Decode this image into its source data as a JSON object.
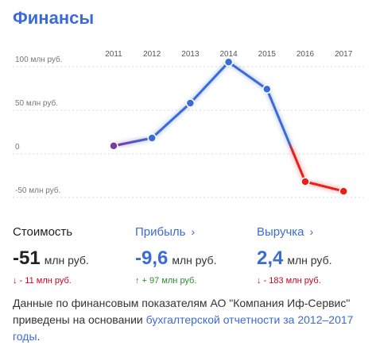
{
  "title": "Финансы",
  "colors": {
    "up": "#3b6bd6",
    "down": "#e8201a",
    "start": "#7a3aa0",
    "label": "#3b6bd6",
    "negative": "#d0021b",
    "positive": "#2e8b2e"
  },
  "chart_data": {
    "type": "line",
    "x": [
      "2011",
      "2012",
      "2013",
      "2014",
      "2015",
      "2016",
      "2017"
    ],
    "y_ticks": [
      {
        "value": 100,
        "label": "100 млн руб."
      },
      {
        "value": 50,
        "label": "50 млн руб."
      },
      {
        "value": 0,
        "label": "0"
      },
      {
        "value": -50,
        "label": "-50 млн руб."
      }
    ],
    "series": [
      {
        "values": [
          1,
          10,
          50,
          97,
          66,
          -40,
          -51
        ]
      }
    ],
    "ylim": [
      -50,
      100
    ],
    "grid": true
  },
  "metrics": [
    {
      "label": "Стоимость",
      "value": "-51",
      "unit": "млн руб.",
      "delta": "↓  - 11 млн руб."
    },
    {
      "label": "Прибыль",
      "chevron": "›",
      "value": "-9,6",
      "unit": "млн руб.",
      "delta": "↑  + 97 млн руб."
    },
    {
      "label": "Выручка",
      "chevron": "›",
      "value": "2,4",
      "unit": "млн руб.",
      "delta": "↓  - 183 млн руб."
    }
  ],
  "note": {
    "text": "Данные по финансовым показателям АО \"Компания Иф-Сервис\" приведены на основании ",
    "link": "бухгалтерской отчетности за 2012–2017 годы",
    "end": "."
  }
}
